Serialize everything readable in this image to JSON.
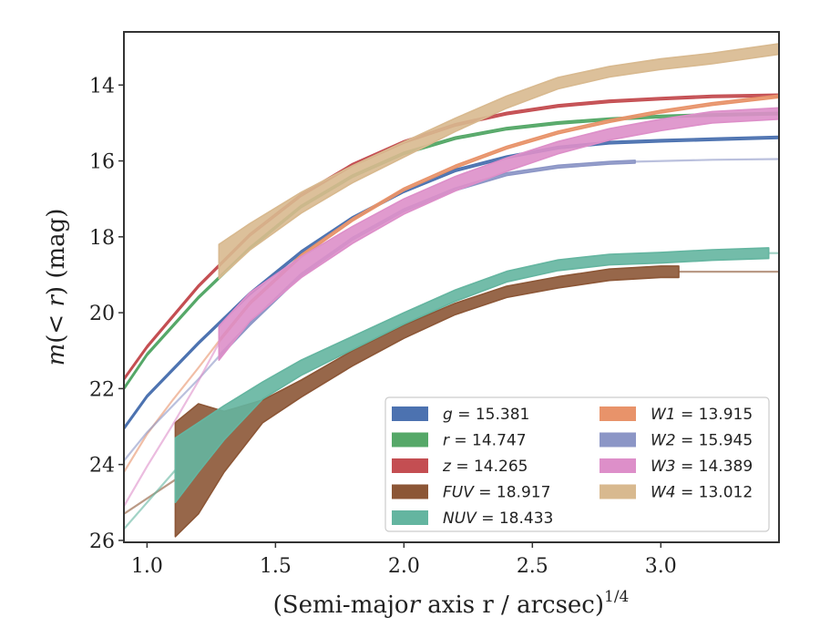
{
  "chart_data": {
    "type": "line",
    "xlabel": "(Semi-major axis r / arcsec)",
    "xlabel_italic": "r",
    "xlabel_power": "1/4",
    "ylabel": "m(< r) (mag)",
    "xlim": [
      0.91,
      3.46
    ],
    "ylim": [
      26.05,
      12.6
    ],
    "y_inverted": true,
    "xticks": [
      1.0,
      1.5,
      2.0,
      2.5,
      3.0
    ],
    "yticks": [
      14,
      16,
      18,
      20,
      22,
      24,
      26
    ],
    "xtick_labels": [
      "1.0",
      "1.5",
      "2.0",
      "2.5",
      "3.0"
    ],
    "ytick_labels": [
      "14",
      "16",
      "18",
      "20",
      "22",
      "24",
      "26"
    ],
    "grid": false,
    "legend_placement": "lower-right",
    "series": [
      {
        "name": "g = 15.381",
        "band": "g",
        "total_mag": "15.381",
        "color": "#4c72b0",
        "band_x": [
          0.91,
          1.0,
          1.2,
          1.4,
          1.6,
          1.8,
          2.0,
          2.2,
          2.4,
          2.6,
          2.8,
          3.0,
          3.2,
          3.46
        ],
        "band_y": [
          23.05,
          22.2,
          20.8,
          19.5,
          18.4,
          17.5,
          16.8,
          16.25,
          15.9,
          15.65,
          15.52,
          15.47,
          15.43,
          15.38
        ],
        "band_width": 0.06,
        "ext_x": [],
        "ext_y": []
      },
      {
        "name": "r = 14.747",
        "band": "r",
        "total_mag": "14.747",
        "color": "#55a868",
        "band_x": [
          0.91,
          1.0,
          1.2,
          1.4,
          1.6,
          1.8,
          2.0,
          2.2,
          2.4,
          2.6,
          2.8,
          3.0,
          3.2,
          3.46
        ],
        "band_y": [
          22.0,
          21.1,
          19.6,
          18.3,
          17.2,
          16.4,
          15.8,
          15.4,
          15.15,
          15.0,
          14.9,
          14.83,
          14.79,
          14.75
        ],
        "band_width": 0.06,
        "ext_x": [],
        "ext_y": []
      },
      {
        "name": "z = 14.265",
        "band": "z",
        "total_mag": "14.265",
        "color": "#c44e52",
        "band_x": [
          0.91,
          1.0,
          1.2,
          1.4,
          1.6,
          1.8,
          2.0,
          2.2,
          2.4,
          2.6,
          2.8,
          3.0,
          3.2,
          3.46
        ],
        "band_y": [
          21.75,
          20.9,
          19.3,
          17.95,
          16.9,
          16.1,
          15.5,
          15.05,
          14.75,
          14.55,
          14.43,
          14.36,
          14.3,
          14.27
        ],
        "band_width": 0.06,
        "ext_x": [],
        "ext_y": []
      },
      {
        "name": "FUV = 18.917",
        "band": "FUV",
        "total_mag": "18.917",
        "color": "#8c5636",
        "band_x": [
          1.11,
          1.2,
          1.3,
          1.45,
          1.6,
          1.8,
          2.0,
          2.2,
          2.4,
          2.6,
          2.8,
          3.0,
          3.07
        ],
        "band_y": [
          24.4,
          23.85,
          23.4,
          22.6,
          22.0,
          21.2,
          20.5,
          19.9,
          19.45,
          19.2,
          19.0,
          18.92,
          18.92
        ],
        "band_width": [
          3.0,
          2.9,
          1.6,
          0.6,
          0.45,
          0.4,
          0.35,
          0.3,
          0.3,
          0.3,
          0.3,
          0.3,
          0.3
        ],
        "ext_x": [
          0.91,
          1.11
        ],
        "ext_y": [
          25.3,
          24.4
        ],
        "ext2_x": [
          3.07,
          3.46
        ],
        "ext2_y": [
          18.92,
          18.92
        ]
      },
      {
        "name": "NUV = 18.433",
        "band": "NUV",
        "total_mag": "18.433",
        "color": "#64b5a0",
        "band_x": [
          1.11,
          1.2,
          1.3,
          1.45,
          1.6,
          1.8,
          2.0,
          2.2,
          2.4,
          2.6,
          2.8,
          3.0,
          3.2,
          3.42
        ],
        "band_y": [
          24.15,
          23.55,
          22.9,
          22.05,
          21.45,
          20.8,
          20.15,
          19.55,
          19.05,
          18.75,
          18.6,
          18.55,
          18.48,
          18.43
        ],
        "band_width": [
          1.7,
          1.3,
          0.9,
          0.45,
          0.4,
          0.35,
          0.3,
          0.3,
          0.28,
          0.28,
          0.28,
          0.28,
          0.28,
          0.28
        ],
        "ext_x": [
          0.91,
          1.11
        ],
        "ext_y": [
          25.7,
          24.15
        ],
        "ext2_x": [
          3.42,
          3.46
        ],
        "ext2_y": [
          18.43,
          18.43
        ]
      },
      {
        "name": "W1 = 13.915",
        "band": "W1",
        "total_mag": "13.915",
        "color": "#e8936a",
        "band_x": [
          1.28,
          1.4,
          1.6,
          1.8,
          2.0,
          2.2,
          2.4,
          2.6,
          2.8,
          3.0,
          3.2,
          3.46
        ],
        "band_y": [
          20.75,
          19.75,
          18.5,
          17.55,
          16.75,
          16.15,
          15.65,
          15.25,
          14.95,
          14.7,
          14.5,
          14.3
        ],
        "band_width": 0.07,
        "ext_x": [
          0.91,
          1.0,
          1.1,
          1.2,
          1.28
        ],
        "ext_y": [
          24.2,
          23.2,
          22.3,
          21.45,
          20.75
        ]
      },
      {
        "name": "W2 = 15.945",
        "band": "W2",
        "total_mag": "15.945",
        "color": "#8c96c6",
        "band_x": [
          1.28,
          1.4,
          1.6,
          1.8,
          2.0,
          2.2,
          2.4,
          2.6,
          2.8,
          2.9
        ],
        "band_y": [
          21.15,
          20.3,
          19.0,
          18.05,
          17.3,
          16.75,
          16.35,
          16.15,
          16.05,
          16.02
        ],
        "band_width": 0.07,
        "ext_x": [
          0.91,
          1.0,
          1.1,
          1.2,
          1.28
        ],
        "ext_y": [
          23.9,
          23.15,
          22.45,
          21.75,
          21.15
        ],
        "ext2_x": [
          2.9,
          3.2,
          3.46
        ],
        "ext2_y": [
          16.02,
          15.97,
          15.95
        ]
      },
      {
        "name": "W3 = 14.389",
        "band": "W3",
        "total_mag": "14.389",
        "color": "#dd8fc9",
        "band_x": [
          1.28,
          1.4,
          1.6,
          1.8,
          2.0,
          2.2,
          2.4,
          2.6,
          2.8,
          3.0,
          3.2,
          3.46
        ],
        "band_y": [
          20.8,
          19.85,
          18.8,
          17.95,
          17.2,
          16.6,
          16.1,
          15.65,
          15.3,
          15.05,
          14.85,
          14.75
        ],
        "band_width": [
          0.9,
          0.75,
          0.55,
          0.45,
          0.4,
          0.38,
          0.35,
          0.32,
          0.3,
          0.3,
          0.3,
          0.3
        ],
        "ext_x": [
          0.91,
          1.0,
          1.1,
          1.2,
          1.28
        ],
        "ext_y": [
          25.1,
          24.05,
          22.95,
          21.8,
          20.8
        ]
      },
      {
        "name": "W4 = 13.012",
        "band": "W4",
        "total_mag": "13.012",
        "color": "#d8b98f",
        "band_x": [
          1.28,
          1.4,
          1.6,
          1.8,
          2.0,
          2.2,
          2.4,
          2.6,
          2.8,
          3.0,
          3.2,
          3.46
        ],
        "band_y": [
          18.65,
          18.0,
          17.1,
          16.35,
          15.7,
          15.05,
          14.45,
          13.95,
          13.65,
          13.45,
          13.3,
          13.05
        ],
        "band_width": [
          0.9,
          0.7,
          0.55,
          0.45,
          0.4,
          0.35,
          0.32,
          0.3,
          0.28,
          0.28,
          0.28,
          0.28
        ],
        "ext_x": [],
        "ext_y": []
      }
    ]
  }
}
